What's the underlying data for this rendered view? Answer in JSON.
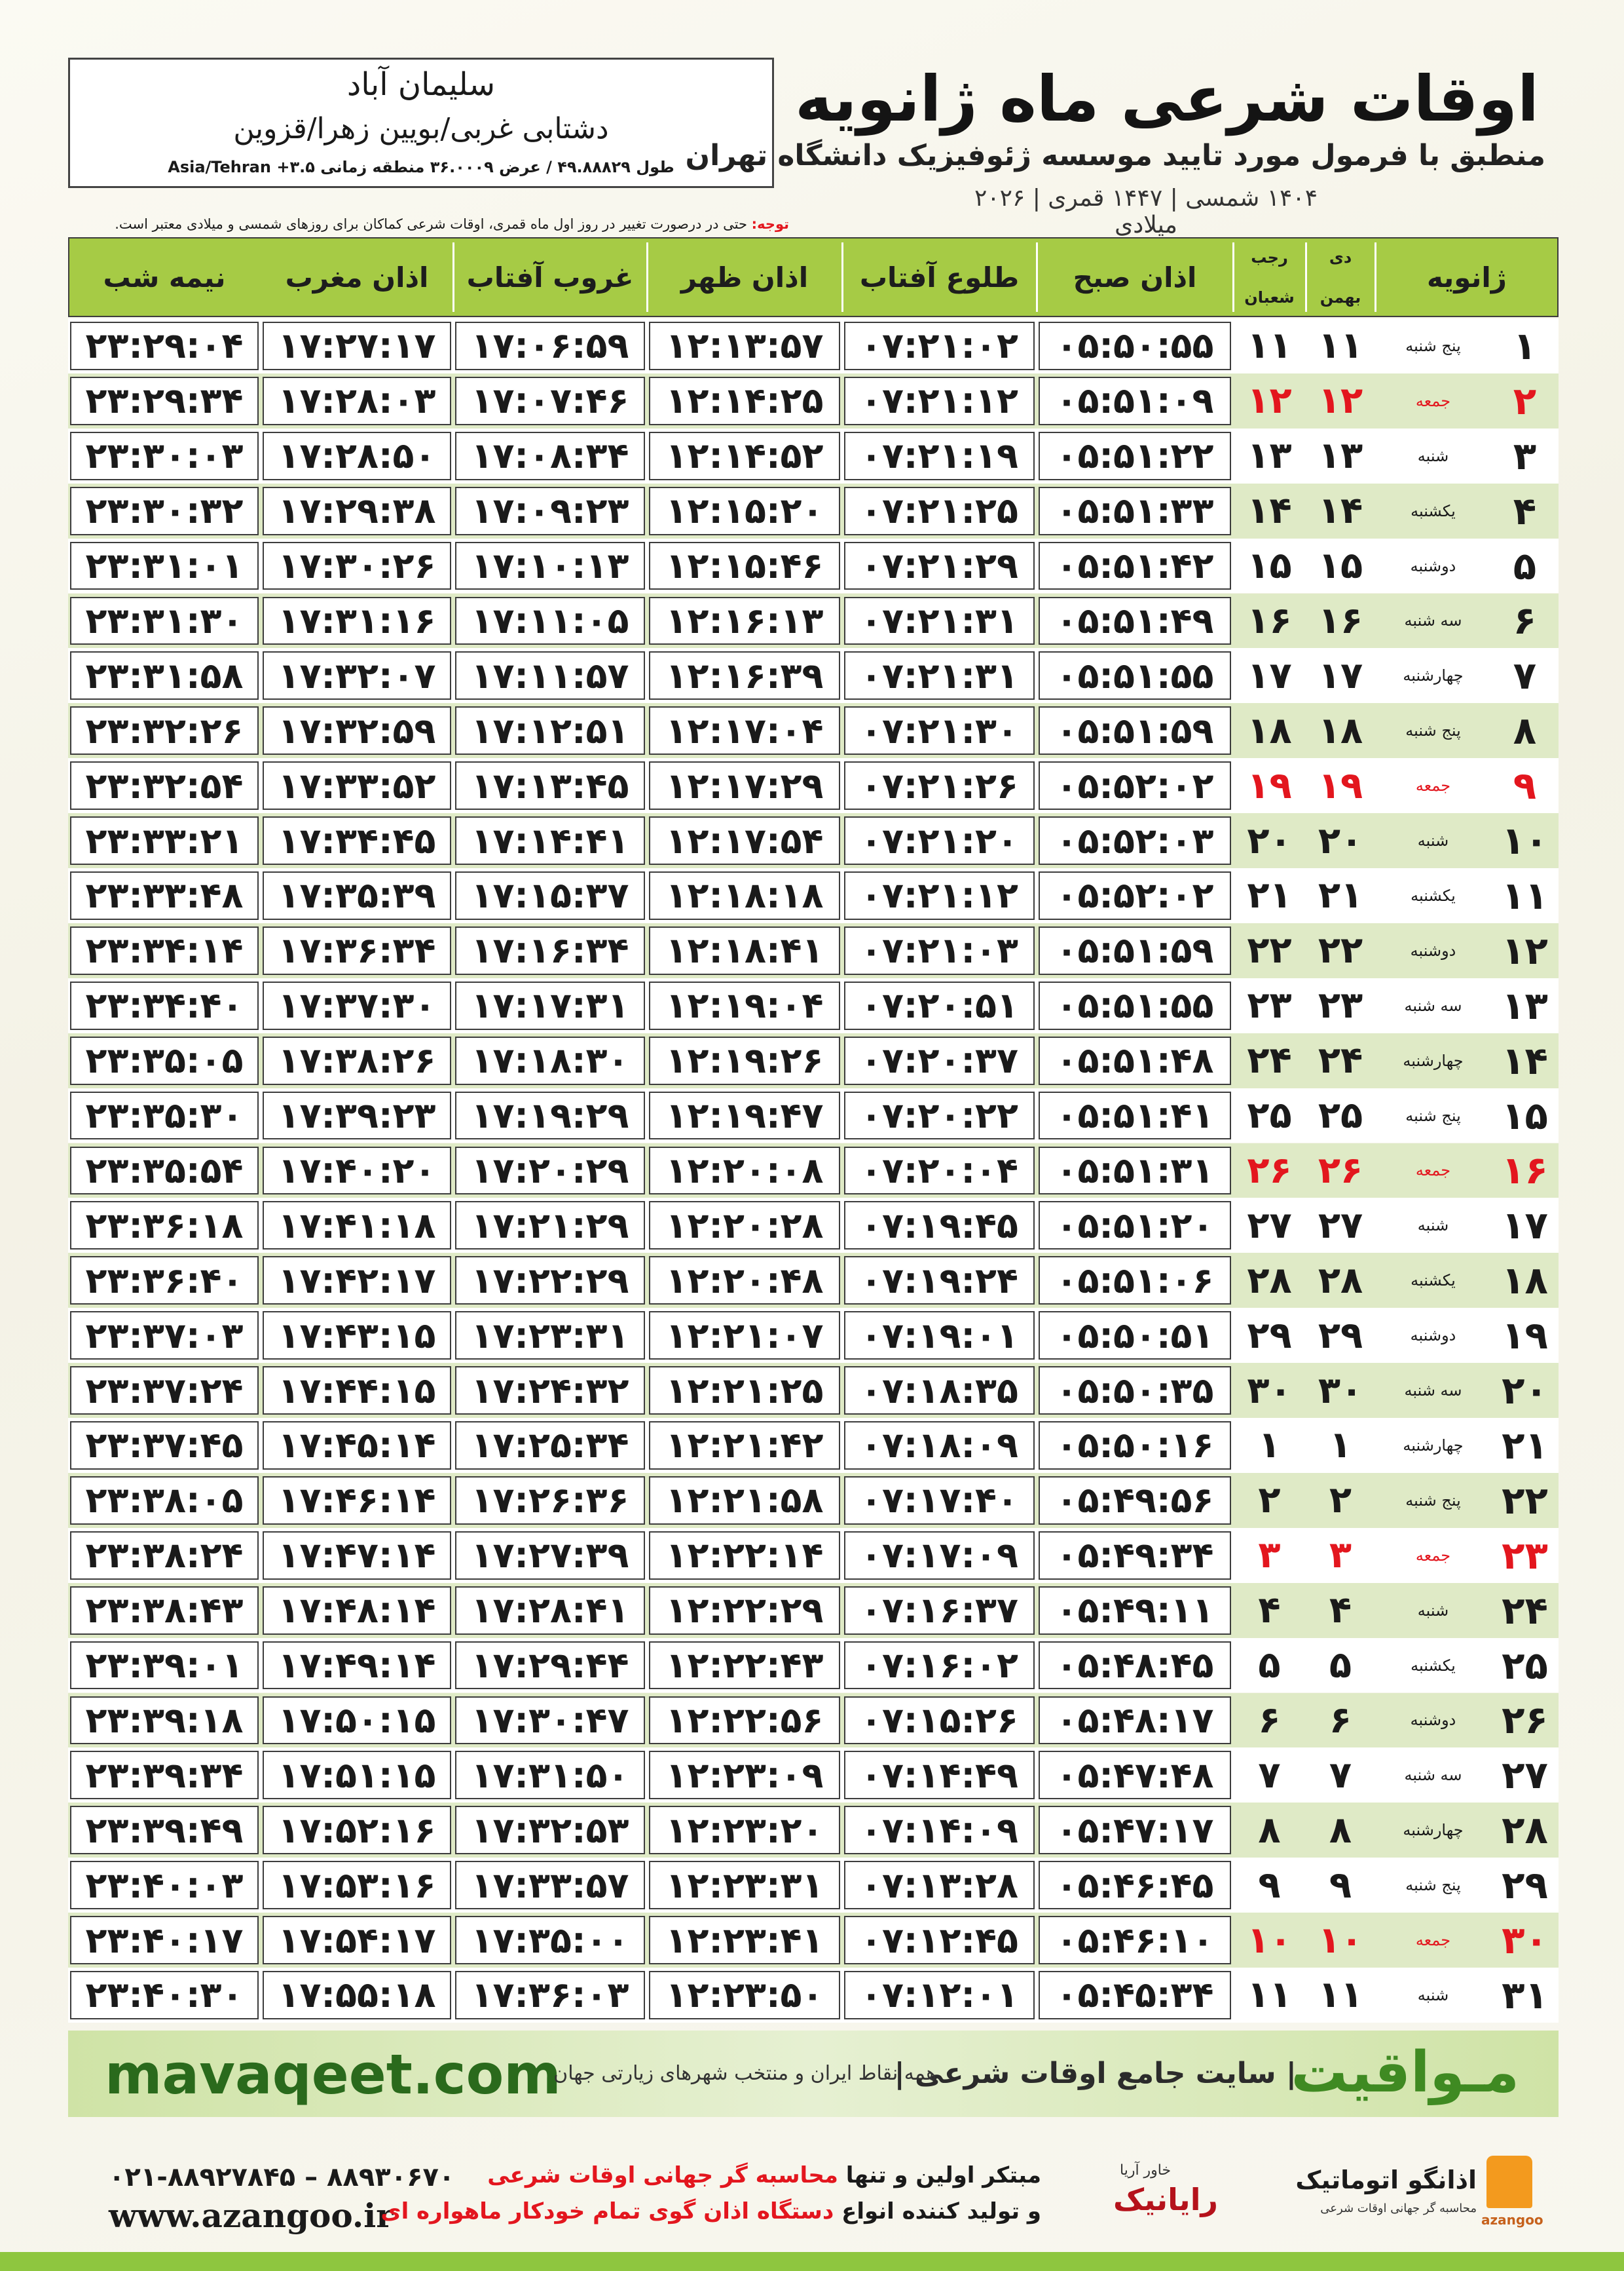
{
  "header": {
    "location_name": "سلیمان آباد",
    "location_region": "دشتابی غربی/بویین زهرا/قزوین",
    "coordinates": "طول ۴۹.۸۸۸۲۹ / عرض ۳۶.۰۰۰۹ منطقه زمانی ۳.۵+ Asia/Tehran",
    "title": "اوقات شرعی ماه ژانویه",
    "subtitle": "منطبق با فرمول مورد تایید موسسه ژئوفیزیک دانشگاه تهران",
    "dates": "۱۴۰۴ شمسی | ۱۴۴۷ قمری | ۲۰۲۶ میلادی"
  },
  "note": {
    "label": "توجه:",
    "text": "حتی در درصورت تغییر در روز اول ماه قمری، اوقات شرعی کماکان برای روزهای شمسی و میلادی معتبر است."
  },
  "table": {
    "header": [
      "ژانویه",
      "دی",
      "بهمن",
      "رجب",
      "شعبان",
      "اذان صبح",
      "طلوع آفتاب",
      "اذان ظهر",
      "غروب آفتاب",
      "اذان مغرب",
      "نیمه شب"
    ],
    "rows": [
      {
        "cells": [
          "۱",
          "پنج شنبه",
          "۱۱",
          "۱۱",
          "۰۵:۵۰:۵۵",
          "۰۷:۲۱:۰۲",
          "۱۲:۱۳:۵۷",
          "۱۷:۰۶:۵۹",
          "۱۷:۲۷:۱۷",
          "۲۳:۲۹:۰۴"
        ]
      },
      {
        "cells": [
          "۲",
          "جمعه",
          "۱۲",
          "۱۲",
          "۰۵:۵۱:۰۹",
          "۰۷:۲۱:۱۲",
          "۱۲:۱۴:۲۵",
          "۱۷:۰۷:۴۶",
          "۱۷:۲۸:۰۳",
          "۲۳:۲۹:۳۴"
        ],
        "color": "#e3161e"
      },
      {
        "cells": [
          "۳",
          "شنبه",
          "۱۳",
          "۱۳",
          "۰۵:۵۱:۲۲",
          "۰۷:۲۱:۱۹",
          "۱۲:۱۴:۵۲",
          "۱۷:۰۸:۳۴",
          "۱۷:۲۸:۵۰",
          "۲۳:۳۰:۰۳"
        ]
      },
      {
        "cells": [
          "۴",
          "یکشنبه",
          "۱۴",
          "۱۴",
          "۰۵:۵۱:۳۳",
          "۰۷:۲۱:۲۵",
          "۱۲:۱۵:۲۰",
          "۱۷:۰۹:۲۳",
          "۱۷:۲۹:۳۸",
          "۲۳:۳۰:۳۲"
        ]
      },
      {
        "cells": [
          "۵",
          "دوشنبه",
          "۱۵",
          "۱۵",
          "۰۵:۵۱:۴۲",
          "۰۷:۲۱:۲۹",
          "۱۲:۱۵:۴۶",
          "۱۷:۱۰:۱۳",
          "۱۷:۳۰:۲۶",
          "۲۳:۳۱:۰۱"
        ]
      },
      {
        "cells": [
          "۶",
          "سه شنبه",
          "۱۶",
          "۱۶",
          "۰۵:۵۱:۴۹",
          "۰۷:۲۱:۳۱",
          "۱۲:۱۶:۱۳",
          "۱۷:۱۱:۰۵",
          "۱۷:۳۱:۱۶",
          "۲۳:۳۱:۳۰"
        ]
      },
      {
        "cells": [
          "۷",
          "چهارشنبه",
          "۱۷",
          "۱۷",
          "۰۵:۵۱:۵۵",
          "۰۷:۲۱:۳۱",
          "۱۲:۱۶:۳۹",
          "۱۷:۱۱:۵۷",
          "۱۷:۳۲:۰۷",
          "۲۳:۳۱:۵۸"
        ]
      },
      {
        "cells": [
          "۸",
          "پنج شنبه",
          "۱۸",
          "۱۸",
          "۰۵:۵۱:۵۹",
          "۰۷:۲۱:۳۰",
          "۱۲:۱۷:۰۴",
          "۱۷:۱۲:۵۱",
          "۱۷:۳۲:۵۹",
          "۲۳:۳۲:۲۶"
        ]
      },
      {
        "cells": [
          "۹",
          "جمعه",
          "۱۹",
          "۱۹",
          "۰۵:۵۲:۰۲",
          "۰۷:۲۱:۲۶",
          "۱۲:۱۷:۲۹",
          "۱۷:۱۳:۴۵",
          "۱۷:۳۳:۵۲",
          "۲۳:۳۲:۵۴"
        ],
        "color": "#e3161e"
      },
      {
        "cells": [
          "۱۰",
          "شنبه",
          "۲۰",
          "۲۰",
          "۰۵:۵۲:۰۳",
          "۰۷:۲۱:۲۰",
          "۱۲:۱۷:۵۴",
          "۱۷:۱۴:۴۱",
          "۱۷:۳۴:۴۵",
          "۲۳:۳۳:۲۱"
        ]
      },
      {
        "cells": [
          "۱۱",
          "یکشنبه",
          "۲۱",
          "۲۱",
          "۰۵:۵۲:۰۲",
          "۰۷:۲۱:۱۲",
          "۱۲:۱۸:۱۸",
          "۱۷:۱۵:۳۷",
          "۱۷:۳۵:۳۹",
          "۲۳:۳۳:۴۸"
        ]
      },
      {
        "cells": [
          "۱۲",
          "دوشنبه",
          "۲۲",
          "۲۲",
          "۰۵:۵۱:۵۹",
          "۰۷:۲۱:۰۳",
          "۱۲:۱۸:۴۱",
          "۱۷:۱۶:۳۴",
          "۱۷:۳۶:۳۴",
          "۲۳:۳۴:۱۴"
        ]
      },
      {
        "cells": [
          "۱۳",
          "سه شنبه",
          "۲۳",
          "۲۳",
          "۰۵:۵۱:۵۵",
          "۰۷:۲۰:۵۱",
          "۱۲:۱۹:۰۴",
          "۱۷:۱۷:۳۱",
          "۱۷:۳۷:۳۰",
          "۲۳:۳۴:۴۰"
        ]
      },
      {
        "cells": [
          "۱۴",
          "چهارشنبه",
          "۲۴",
          "۲۴",
          "۰۵:۵۱:۴۸",
          "۰۷:۲۰:۳۷",
          "۱۲:۱۹:۲۶",
          "۱۷:۱۸:۳۰",
          "۱۷:۳۸:۲۶",
          "۲۳:۳۵:۰۵"
        ]
      },
      {
        "cells": [
          "۱۵",
          "پنج شنبه",
          "۲۵",
          "۲۵",
          "۰۵:۵۱:۴۱",
          "۰۷:۲۰:۲۲",
          "۱۲:۱۹:۴۷",
          "۱۷:۱۹:۲۹",
          "۱۷:۳۹:۲۳",
          "۲۳:۳۵:۳۰"
        ]
      },
      {
        "cells": [
          "۱۶",
          "جمعه",
          "۲۶",
          "۲۶",
          "۰۵:۵۱:۳۱",
          "۰۷:۲۰:۰۴",
          "۱۲:۲۰:۰۸",
          "۱۷:۲۰:۲۹",
          "۱۷:۴۰:۲۰",
          "۲۳:۳۵:۵۴"
        ],
        "color": "#e3161e"
      },
      {
        "cells": [
          "۱۷",
          "شنبه",
          "۲۷",
          "۲۷",
          "۰۵:۵۱:۲۰",
          "۰۷:۱۹:۴۵",
          "۱۲:۲۰:۲۸",
          "۱۷:۲۱:۲۹",
          "۱۷:۴۱:۱۸",
          "۲۳:۳۶:۱۸"
        ]
      },
      {
        "cells": [
          "۱۸",
          "یکشنبه",
          "۲۸",
          "۲۸",
          "۰۵:۵۱:۰۶",
          "۰۷:۱۹:۲۴",
          "۱۲:۲۰:۴۸",
          "۱۷:۲۲:۲۹",
          "۱۷:۴۲:۱۷",
          "۲۳:۳۶:۴۰"
        ]
      },
      {
        "cells": [
          "۱۹",
          "دوشنبه",
          "۲۹",
          "۲۹",
          "۰۵:۵۰:۵۱",
          "۰۷:۱۹:۰۱",
          "۱۲:۲۱:۰۷",
          "۱۷:۲۳:۳۱",
          "۱۷:۴۳:۱۵",
          "۲۳:۳۷:۰۳"
        ]
      },
      {
        "cells": [
          "۲۰",
          "سه شنبه",
          "۳۰",
          "۳۰",
          "۰۵:۵۰:۳۵",
          "۰۷:۱۸:۳۵",
          "۱۲:۲۱:۲۵",
          "۱۷:۲۴:۳۲",
          "۱۷:۴۴:۱۵",
          "۲۳:۳۷:۲۴"
        ]
      },
      {
        "cells": [
          "۲۱",
          "چهارشنبه",
          "۱",
          "۱",
          "۰۵:۵۰:۱۶",
          "۰۷:۱۸:۰۹",
          "۱۲:۲۱:۴۲",
          "۱۷:۲۵:۳۴",
          "۱۷:۴۵:۱۴",
          "۲۳:۳۷:۴۵"
        ]
      },
      {
        "cells": [
          "۲۲",
          "پنج شنبه",
          "۲",
          "۲",
          "۰۵:۴۹:۵۶",
          "۰۷:۱۷:۴۰",
          "۱۲:۲۱:۵۸",
          "۱۷:۲۶:۳۶",
          "۱۷:۴۶:۱۴",
          "۲۳:۳۸:۰۵"
        ]
      },
      {
        "cells": [
          "۲۳",
          "جمعه",
          "۳",
          "۳",
          "۰۵:۴۹:۳۴",
          "۰۷:۱۷:۰۹",
          "۱۲:۲۲:۱۴",
          "۱۷:۲۷:۳۹",
          "۱۷:۴۷:۱۴",
          "۲۳:۳۸:۲۴"
        ],
        "color": "#e3161e"
      },
      {
        "cells": [
          "۲۴",
          "شنبه",
          "۴",
          "۴",
          "۰۵:۴۹:۱۱",
          "۰۷:۱۶:۳۷",
          "۱۲:۲۲:۲۹",
          "۱۷:۲۸:۴۱",
          "۱۷:۴۸:۱۴",
          "۲۳:۳۸:۴۳"
        ]
      },
      {
        "cells": [
          "۲۵",
          "یکشنبه",
          "۵",
          "۵",
          "۰۵:۴۸:۴۵",
          "۰۷:۱۶:۰۲",
          "۱۲:۲۲:۴۳",
          "۱۷:۲۹:۴۴",
          "۱۷:۴۹:۱۴",
          "۲۳:۳۹:۰۱"
        ]
      },
      {
        "cells": [
          "۲۶",
          "دوشنبه",
          "۶",
          "۶",
          "۰۵:۴۸:۱۷",
          "۰۷:۱۵:۲۶",
          "۱۲:۲۲:۵۶",
          "۱۷:۳۰:۴۷",
          "۱۷:۵۰:۱۵",
          "۲۳:۳۹:۱۸"
        ]
      },
      {
        "cells": [
          "۲۷",
          "سه شنبه",
          "۷",
          "۷",
          "۰۵:۴۷:۴۸",
          "۰۷:۱۴:۴۹",
          "۱۲:۲۳:۰۹",
          "۱۷:۳۱:۵۰",
          "۱۷:۵۱:۱۵",
          "۲۳:۳۹:۳۴"
        ]
      },
      {
        "cells": [
          "۲۸",
          "چهارشنبه",
          "۸",
          "۸",
          "۰۵:۴۷:۱۷",
          "۰۷:۱۴:۰۹",
          "۱۲:۲۳:۲۰",
          "۱۷:۳۲:۵۳",
          "۱۷:۵۲:۱۶",
          "۲۳:۳۹:۴۹"
        ]
      },
      {
        "cells": [
          "۲۹",
          "پنج شنبه",
          "۹",
          "۹",
          "۰۵:۴۶:۴۵",
          "۰۷:۱۳:۲۸",
          "۱۲:۲۳:۳۱",
          "۱۷:۳۳:۵۷",
          "۱۷:۵۳:۱۶",
          "۲۳:۴۰:۰۳"
        ]
      },
      {
        "cells": [
          "۳۰",
          "جمعه",
          "۱۰",
          "۱۰",
          "۰۵:۴۶:۱۰",
          "۰۷:۱۲:۴۵",
          "۱۲:۲۳:۴۱",
          "۱۷:۳۵:۰۰",
          "۱۷:۵۴:۱۷",
          "۲۳:۴۰:۱۷"
        ],
        "color": "#e3161e"
      },
      {
        "cells": [
          "۳۱",
          "شنبه",
          "۱۱",
          "۱۱",
          "۰۵:۴۵:۳۴",
          "۰۷:۱۲:۰۱",
          "۱۲:۲۳:۵۰",
          "۱۷:۳۶:۰۳",
          "۱۷:۵۵:۱۸",
          "۲۳:۴۰:۳۰"
        ]
      }
    ]
  },
  "banner": {
    "site": "mavaqeet.com",
    "brand": "مـواقیت",
    "tagline": "| سایت جامع اوقات شرعی |",
    "description": "همه نقاط ایران و منتخب شهرهای زیارتی جهان"
  },
  "footer": {
    "phone": "۰۲۱-۸۸۹۲۷۸۴۵ – ۸۸۹۳۰۶۷۰",
    "website": "www.azangoo.ir",
    "line1_a": "مبتکر اولین و تنها",
    "line1_b": "محاسبه گر جهانی اوقات شرعی",
    "line2_a": "و تولید کننده انواع",
    "line2_b": "دستگاه اذان گوی تمام خودکار ماهواره ای",
    "logo1": "رایانیک",
    "logo1_sub": "خاور آریا",
    "logo2": "اذانگو اتوماتیک",
    "logo2_sub": "محاسبه گر جهانی اوقات شرعی",
    "logo2_en": "azangoo"
  }
}
